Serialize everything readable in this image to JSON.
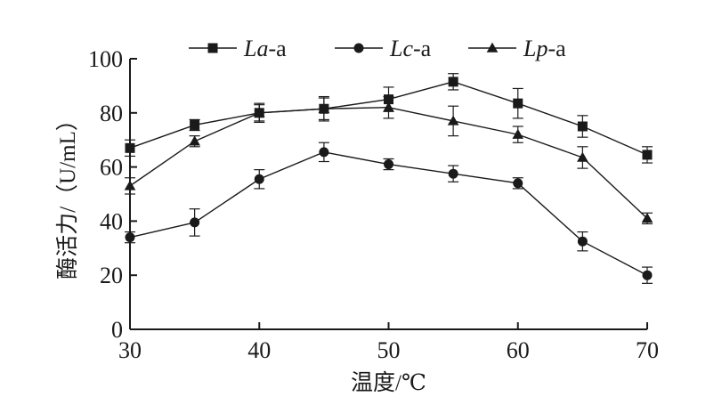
{
  "chart_data": {
    "type": "line",
    "xlabel": "温度/℃",
    "ylabel": "酶活力/（U/mL）",
    "xlim": [
      30,
      70
    ],
    "ylim": [
      0,
      100
    ],
    "xticks": [
      30,
      40,
      50,
      60,
      70
    ],
    "yticks": [
      0,
      20,
      40,
      60,
      80,
      100
    ],
    "x": [
      30,
      35,
      40,
      45,
      50,
      55,
      60,
      65,
      70
    ],
    "legend_position": "top",
    "grid": false,
    "series": [
      {
        "name": "La-a",
        "name_parts": [
          {
            "text": "La",
            "italic": true
          },
          {
            "text": "-a",
            "italic": false
          }
        ],
        "marker": "square",
        "values": [
          67,
          75.5,
          80,
          81.5,
          85,
          91.5,
          83.5,
          75,
          64.5
        ],
        "errors": [
          3,
          2,
          3.5,
          4.5,
          4.5,
          3,
          5.5,
          4,
          3
        ]
      },
      {
        "name": "Lc-a",
        "name_parts": [
          {
            "text": "Lc",
            "italic": true
          },
          {
            "text": "-a",
            "italic": false
          }
        ],
        "marker": "circle",
        "values": [
          34,
          39.5,
          55.5,
          65.5,
          61,
          57.5,
          54,
          32.5,
          20
        ],
        "errors": [
          2,
          5,
          3.5,
          3.5,
          2,
          3,
          2,
          3.5,
          3
        ]
      },
      {
        "name": "Lp-a",
        "name_parts": [
          {
            "text": "Lp",
            "italic": true
          },
          {
            "text": "-a",
            "italic": false
          }
        ],
        "marker": "triangle",
        "values": [
          53,
          69.5,
          80,
          81.5,
          82,
          77,
          72,
          63.5,
          41
        ],
        "errors": [
          3,
          2,
          3,
          4,
          4,
          5.5,
          3,
          4,
          2
        ]
      }
    ]
  }
}
